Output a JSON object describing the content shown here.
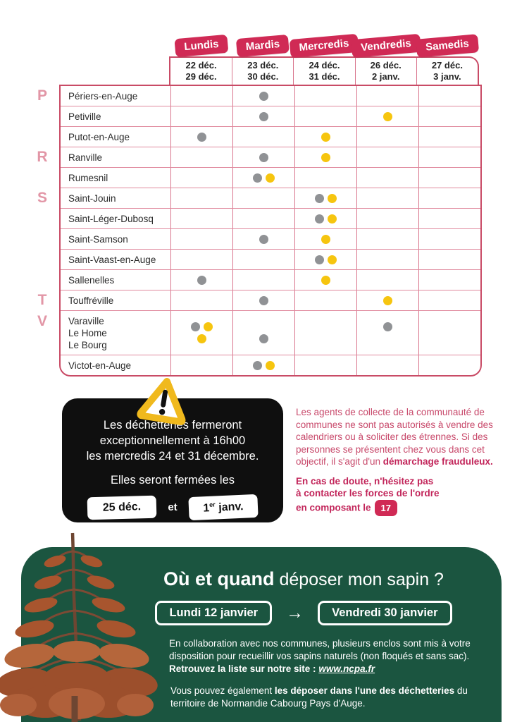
{
  "colors": {
    "gray": "#909295",
    "yellow": "#f6c50f",
    "crimson": "#d02a55",
    "green": "#1b5540"
  },
  "table": {
    "days": [
      {
        "label": "Lundis",
        "dates": [
          "22 déc.",
          "29 déc."
        ]
      },
      {
        "label": "Mardis",
        "dates": [
          "23 déc.",
          "30 déc."
        ]
      },
      {
        "label": "Mercredis",
        "dates": [
          "24 déc.",
          "31 déc."
        ]
      },
      {
        "label": "Vendredis",
        "dates": [
          "26 déc.",
          "2 janv."
        ]
      },
      {
        "label": "Samedis",
        "dates": [
          "27 déc.",
          "3 janv."
        ]
      }
    ],
    "rows": [
      {
        "letter": "P",
        "name": [
          "Périers-en-Auge"
        ],
        "cells": [
          [],
          [
            [
              "gray"
            ]
          ],
          [],
          [],
          []
        ]
      },
      {
        "letter": "",
        "name": [
          "Petiville"
        ],
        "cells": [
          [],
          [
            [
              "gray"
            ]
          ],
          [],
          [
            [
              "yellow"
            ]
          ],
          []
        ]
      },
      {
        "letter": "",
        "name": [
          "Putot-en-Auge"
        ],
        "cells": [
          [
            [
              "gray"
            ]
          ],
          [],
          [
            [
              "yellow"
            ]
          ],
          [],
          []
        ]
      },
      {
        "letter": "R",
        "name": [
          "Ranville"
        ],
        "cells": [
          [],
          [
            [
              "gray"
            ]
          ],
          [
            [
              "yellow"
            ]
          ],
          [],
          []
        ]
      },
      {
        "letter": "",
        "name": [
          "Rumesnil"
        ],
        "cells": [
          [],
          [
            [
              "gray",
              "yellow"
            ]
          ],
          [],
          [],
          []
        ]
      },
      {
        "letter": "S",
        "name": [
          "Saint-Jouin"
        ],
        "cells": [
          [],
          [],
          [
            [
              "gray",
              "yellow"
            ]
          ],
          [],
          []
        ]
      },
      {
        "letter": "",
        "name": [
          "Saint-Léger-Dubosq"
        ],
        "cells": [
          [],
          [],
          [
            [
              "gray",
              "yellow"
            ]
          ],
          [],
          []
        ]
      },
      {
        "letter": "",
        "name": [
          "Saint-Samson"
        ],
        "cells": [
          [],
          [
            [
              "gray"
            ]
          ],
          [
            [
              "yellow"
            ]
          ],
          [],
          []
        ]
      },
      {
        "letter": "",
        "name": [
          "Saint-Vaast-en-Auge"
        ],
        "cells": [
          [],
          [],
          [
            [
              "gray",
              "yellow"
            ]
          ],
          [],
          []
        ]
      },
      {
        "letter": "",
        "name": [
          "Sallenelles"
        ],
        "cells": [
          [
            [
              "gray"
            ]
          ],
          [],
          [
            [
              "yellow"
            ]
          ],
          [],
          []
        ]
      },
      {
        "letter": "T",
        "name": [
          "Touffréville"
        ],
        "cells": [
          [],
          [
            [
              "gray"
            ]
          ],
          [],
          [
            [
              "yellow"
            ]
          ],
          []
        ]
      },
      {
        "letter": "V",
        "name": [
          "Varaville",
          "Le Home",
          "Le Bourg"
        ],
        "tall": true,
        "cells": [
          [
            [
              "gray",
              "yellow"
            ],
            [
              "yellow"
            ]
          ],
          [
            [],
            [
              "gray"
            ]
          ],
          [],
          [
            [
              "gray"
            ],
            []
          ],
          []
        ]
      },
      {
        "letter": "",
        "name": [
          "Victot-en-Auge"
        ],
        "cells": [
          [],
          [
            [
              "gray",
              "yellow"
            ]
          ],
          [],
          [],
          []
        ]
      }
    ]
  },
  "warning": {
    "lines": [
      "Les déchetteries fermeront",
      "exceptionnellement à 16h00",
      "les mercredis 24 et 31 décembre."
    ],
    "subtitle": "Elles seront fermées les",
    "badge1": "25 déc.",
    "conjunction": "et",
    "badge2_base": "1",
    "badge2_sup": "er",
    "badge2_rest": " janv."
  },
  "fraud": {
    "p1": "Les agents de collecte de la communauté de communes ne sont pas autorisés à vendre des calendriers ou à soliciter des étrennes. Si des personnes se présentent chez vous dans cet objectif, il s'agit d'un ",
    "p1_bold": "démarchage frauduleux.",
    "p2_lines": [
      "En cas de doute, n'hésitez pas",
      "à contacter les forces de l'ordre",
      "en composant le"
    ],
    "phone_badge": "17"
  },
  "sapin": {
    "title_bold": "Où et quand",
    "title_rest": " déposer mon sapin ?",
    "start_button": "Lundi 12 janvier",
    "arrow": "→",
    "end_button": "Vendredi 30 janvier",
    "p1": "En collaboration avec nos communes, plusieurs enclos sont mis à votre disposition pour recueillir vos sapins naturels (non floqués et sans sac). ",
    "p1_bold": "Retrouvez la liste sur notre site : ",
    "p1_link": "www.ncpa.fr",
    "p2_start": "Vous pouvez également ",
    "p2_bold": "les déposer dans l'une des déchetteries",
    "p2_end": " du territoire de Normandie Cabourg Pays d'Auge."
  }
}
